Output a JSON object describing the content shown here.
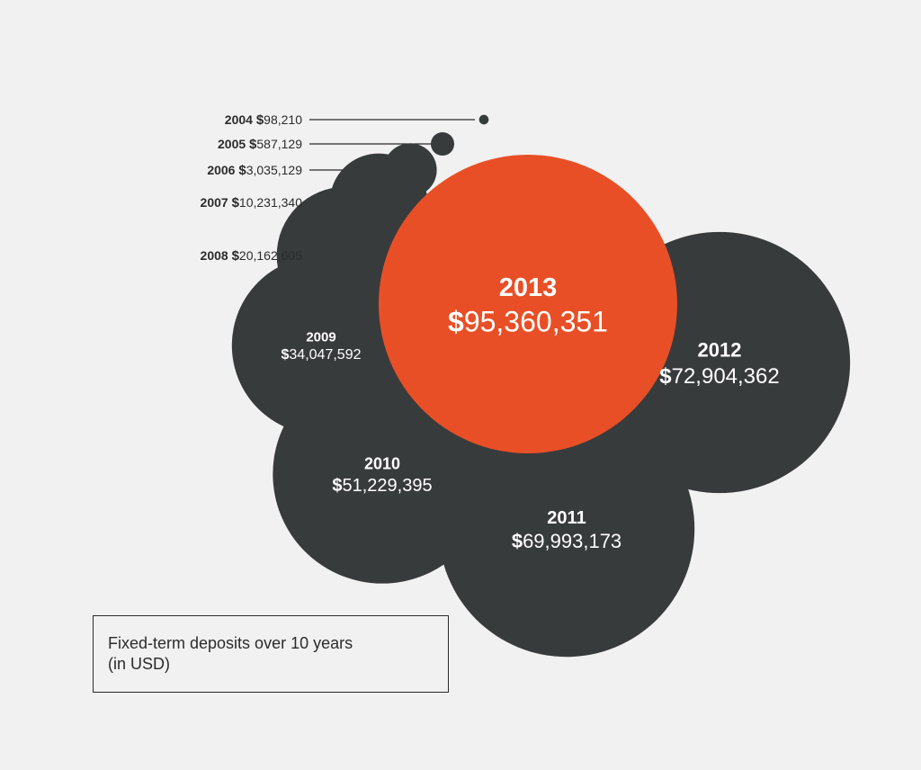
{
  "chart_data": {
    "type": "bubble",
    "title": "",
    "caption": [
      "Fixed-term deposits over 10 years",
      "(in USD)"
    ],
    "currency_symbol": "$",
    "colors": {
      "default": "#383b3c",
      "highlight": "#e94f26",
      "label_text": "#2b2b2b",
      "inside_text": "#ffffff",
      "leader_line": "#2b2b2b"
    },
    "highlight_year": "2013",
    "points": [
      {
        "year": "2004",
        "value": 98210,
        "value_label": "98,210"
      },
      {
        "year": "2005",
        "value": 587129,
        "value_label": "587,129"
      },
      {
        "year": "2006",
        "value": 3035129,
        "value_label": "3,035,129"
      },
      {
        "year": "2007",
        "value": 10231340,
        "value_label": "10,231,340"
      },
      {
        "year": "2008",
        "value": 20162605,
        "value_label": "20,162,605"
      },
      {
        "year": "2009",
        "value": 34047592,
        "value_label": "34,047,592"
      },
      {
        "year": "2010",
        "value": 51229395,
        "value_label": "51,229,395"
      },
      {
        "year": "2011",
        "value": 69993173,
        "value_label": "69,993,173"
      },
      {
        "year": "2012",
        "value": 72904362,
        "value_label": "72,904,362"
      },
      {
        "year": "2013",
        "value": 95360351,
        "value_label": "95,360,351"
      }
    ]
  }
}
